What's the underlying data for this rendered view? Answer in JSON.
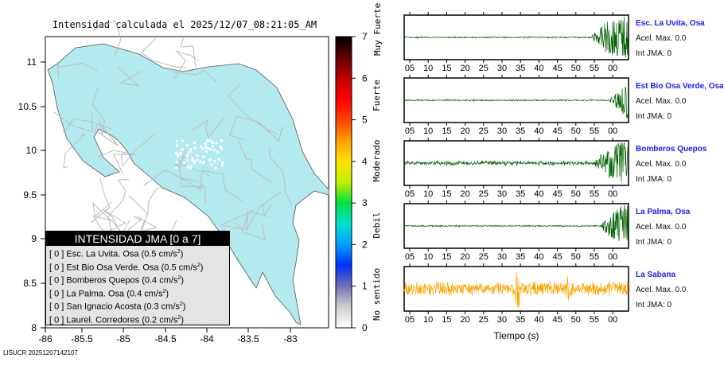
{
  "title": "Intensidad calculada el 2025/12/07_08:21:05_AM",
  "footer": "LISUCR 20251207142107",
  "map": {
    "x_ticks": [
      "-86",
      "-85.5",
      "-85",
      "-84.5",
      "-84",
      "-83.5",
      "-83"
    ],
    "y_ticks": [
      "11",
      "10.5",
      "10",
      "9.5",
      "9",
      "8.5",
      "8"
    ],
    "land_color": "#b3eaee"
  },
  "colorbar": {
    "ticks": [
      "0",
      "1",
      "2",
      "3",
      "4",
      "5",
      "6",
      "7"
    ],
    "labels": [
      "No sentido",
      "Debil",
      "Moderado",
      "Fuerte",
      "Muy Fuerte"
    ]
  },
  "legend": {
    "title": "INTENSIDAD JMA [0 a 7]",
    "rows": [
      {
        "int": "[ 0 ]",
        "name": "Esc. La Uvita. Osa",
        "acc": "(0.5 cm/s",
        "unit_sup": "2",
        "close": ")"
      },
      {
        "int": "[ 0 ]",
        "name": "Est Bio Osa Verde. Osa",
        "acc": "(0.5 cm/s",
        "unit_sup": "2",
        "close": ")"
      },
      {
        "int": "[ 0 ]",
        "name": "Bomberos Quepos",
        "acc": "(0.4 cm/s",
        "unit_sup": "2",
        "close": ")"
      },
      {
        "int": "[ 0 ]",
        "name": "La Palma. Osa",
        "acc": "(0.4 cm/s",
        "unit_sup": "2",
        "close": ")"
      },
      {
        "int": "[ 0 ]",
        "name": "San Ignacio Acosta",
        "acc": "(0.3 cm/s",
        "unit_sup": "2",
        "close": ")"
      },
      {
        "int": "[ 0 ]",
        "name": "Laurel. Corredores",
        "acc": "(0.2 cm/s",
        "unit_sup": "2",
        "close": ")"
      }
    ]
  },
  "chart_data": {
    "type": "line",
    "xlabel": "Tiempo (s)",
    "x_ticks": [
      "05",
      "10",
      "15",
      "20",
      "25",
      "30",
      "35",
      "40",
      "45",
      "50",
      "55",
      "00"
    ],
    "series": [
      {
        "name": "Esc. La Uvita, Osa",
        "acel": "Acel. Max. 0.0",
        "int": "Int JMA: 0",
        "color": "#006400",
        "onset": 0.84
      },
      {
        "name": "Est Bio Osa Verde, Osa",
        "acel": "Acel. Max. 0.0",
        "int": "Int JMA: 0",
        "color": "#006400",
        "onset": 0.92
      },
      {
        "name": "Bomberos Quepos",
        "acel": "Acel. Max. 0.0",
        "int": "Int JMA: 0",
        "color": "#006400",
        "onset": 0.85
      },
      {
        "name": "La Palma, Osa",
        "acel": "Acel. Max. 0.0",
        "int": "Int JMA: 0",
        "color": "#006400",
        "onset": 0.88
      },
      {
        "name": "La Sabana",
        "acel": "Acel. Max. 0.0",
        "int": "Int JMA: 0",
        "color": "#ffa500",
        "onset": 0.0
      }
    ]
  }
}
